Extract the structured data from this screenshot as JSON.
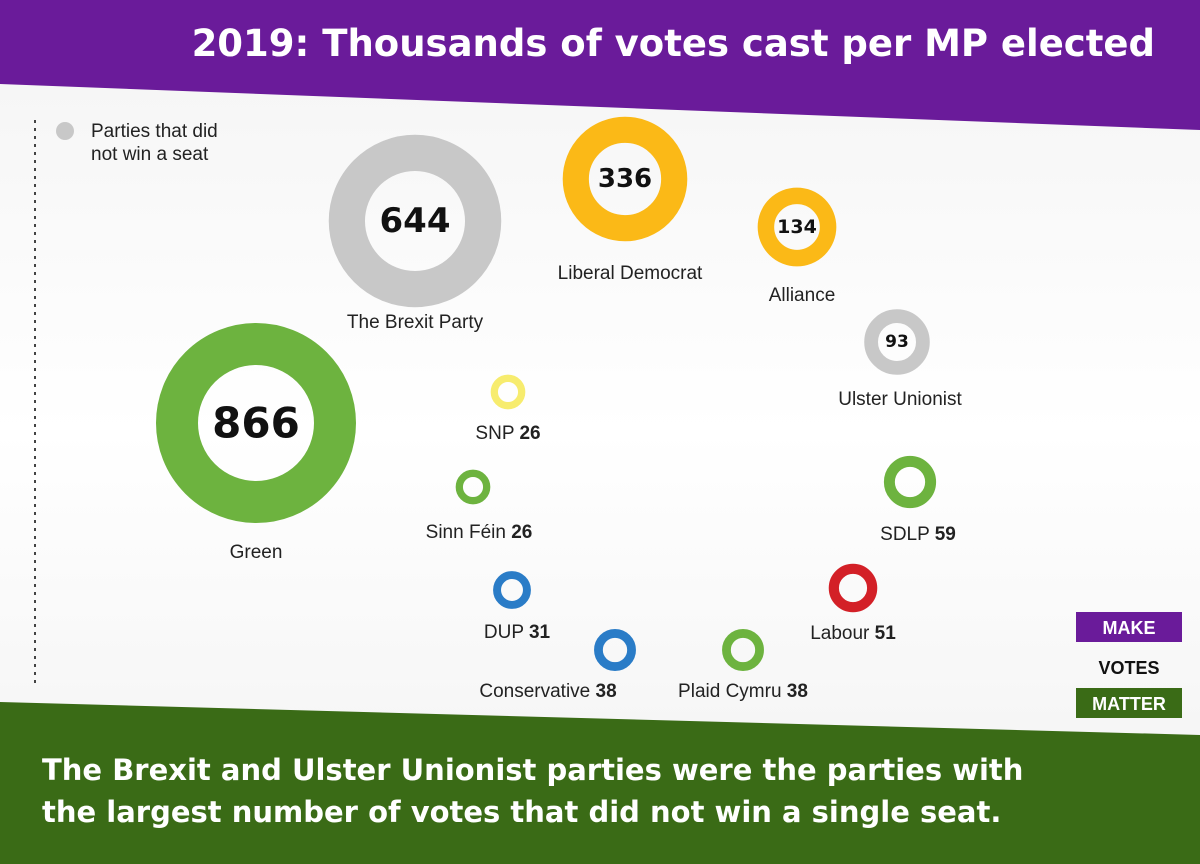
{
  "title": "2019: Thousands of votes cast per MP elected",
  "legend": {
    "line1": "Parties that did",
    "line2": "not win a seat",
    "color": "#c8c8c8"
  },
  "footer": {
    "line1": "The Brexit and Ulster Unionist parties were the parties with",
    "line2": "the largest number of votes that did not win a single seat."
  },
  "logo": {
    "make": "MAKE",
    "votes": "VOTES",
    "matter": "MATTER"
  },
  "colors": {
    "header": "#6a1b9a",
    "footer": "#3a6b16",
    "green": "#6db33f",
    "grey": "#c8c8c8",
    "gold": "#fbb917",
    "yellow": "#f7ec6e",
    "blue": "#2a7cc7",
    "red": "#d32027"
  },
  "chart_data": {
    "type": "bubble",
    "title": "2019: Thousands of votes cast per MP elected",
    "unit": "thousands of votes per MP",
    "points": [
      {
        "name": "Green",
        "value": 866,
        "color": "#6db33f",
        "won_seat": true
      },
      {
        "name": "The Brexit Party",
        "value": 644,
        "color": "#c8c8c8",
        "won_seat": false
      },
      {
        "name": "Liberal Democrat",
        "value": 336,
        "color": "#fbb917",
        "won_seat": true
      },
      {
        "name": "Alliance",
        "value": 134,
        "color": "#fbb917",
        "won_seat": true
      },
      {
        "name": "Ulster Unionist",
        "value": 93,
        "color": "#c8c8c8",
        "won_seat": false
      },
      {
        "name": "SNP",
        "value": 26,
        "color": "#f7ec6e",
        "won_seat": true
      },
      {
        "name": "Sinn Féin",
        "value": 26,
        "color": "#6db33f",
        "won_seat": true
      },
      {
        "name": "SDLP",
        "value": 59,
        "color": "#6db33f",
        "won_seat": true
      },
      {
        "name": "DUP",
        "value": 31,
        "color": "#2a7cc7",
        "won_seat": true
      },
      {
        "name": "Labour",
        "value": 51,
        "color": "#d32027",
        "won_seat": true
      },
      {
        "name": "Conservative",
        "value": 38,
        "color": "#2a7cc7",
        "won_seat": true
      },
      {
        "name": "Plaid Cymru",
        "value": 38,
        "color": "#6db33f",
        "won_seat": true
      }
    ]
  }
}
